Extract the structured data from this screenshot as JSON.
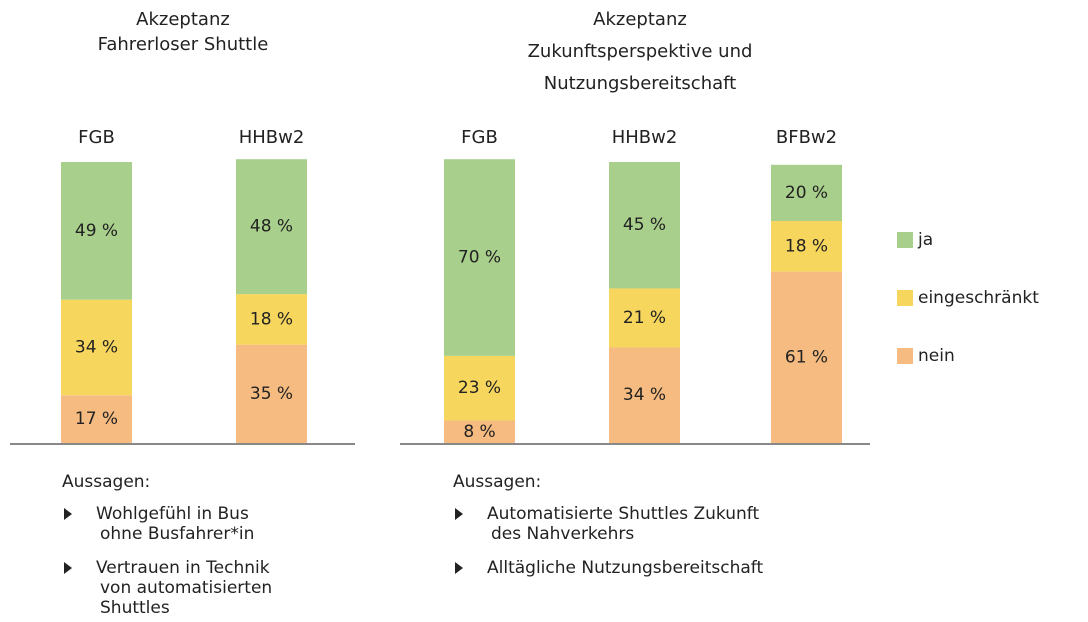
{
  "chart_data": [
    {
      "type": "stacked_bar",
      "title": [
        "Akzeptanz",
        "Fahrerloser Shuttle"
      ],
      "categories": [
        "FGB",
        "HHBw2"
      ],
      "ylim": [
        0,
        100
      ],
      "series": [
        {
          "color": "#f5bb80",
          "values": [
            17,
            35
          ],
          "value_labels": [
            "17 %",
            "35 %"
          ]
        },
        {
          "color": "#f7d65e",
          "values": [
            34,
            18
          ],
          "value_labels": [
            "34 %",
            "18 %"
          ]
        },
        {
          "color": "#a9cf8c",
          "values": [
            49,
            48
          ],
          "value_labels": [
            "49 %",
            "48 %"
          ]
        }
      ],
      "notes": {
        "heading": "Aussagen:",
        "items": [
          [
            "Wohlgefühl in Bus",
            "ohne Busfahrer*in"
          ],
          [
            "Vertrauen in Technik",
            "von automatisierten",
            "Shuttles"
          ]
        ]
      }
    },
    {
      "type": "stacked_bar",
      "title": [
        "Akzeptanz",
        "Zukunftsperspektive und",
        "Nutzungsbereitschaft"
      ],
      "categories": [
        "FGB",
        "HHBw2",
        "BFBw2"
      ],
      "ylim": [
        0,
        100
      ],
      "series": [
        {
          "name": "nein",
          "color": "#f5bb80",
          "values": [
            8,
            34,
            61
          ],
          "value_labels": [
            "8 %",
            "34 %",
            "61 %"
          ]
        },
        {
          "name": "eingeschränkt",
          "color": "#f7d65e",
          "values": [
            23,
            21,
            18
          ],
          "value_labels": [
            "23 %",
            "21 %",
            "18 %"
          ]
        },
        {
          "name": "ja",
          "color": "#a9cf8c",
          "values": [
            70,
            45,
            20
          ],
          "value_labels": [
            "70 %",
            "45 %",
            "20 %"
          ]
        }
      ],
      "notes": {
        "heading": "Aussagen:",
        "items": [
          [
            "Automatisierte Shuttles Zukunft",
            "des Nahverkehrs"
          ],
          [
            "Alltägliche Nutzungsbereitschaft"
          ]
        ]
      }
    }
  ]
}
